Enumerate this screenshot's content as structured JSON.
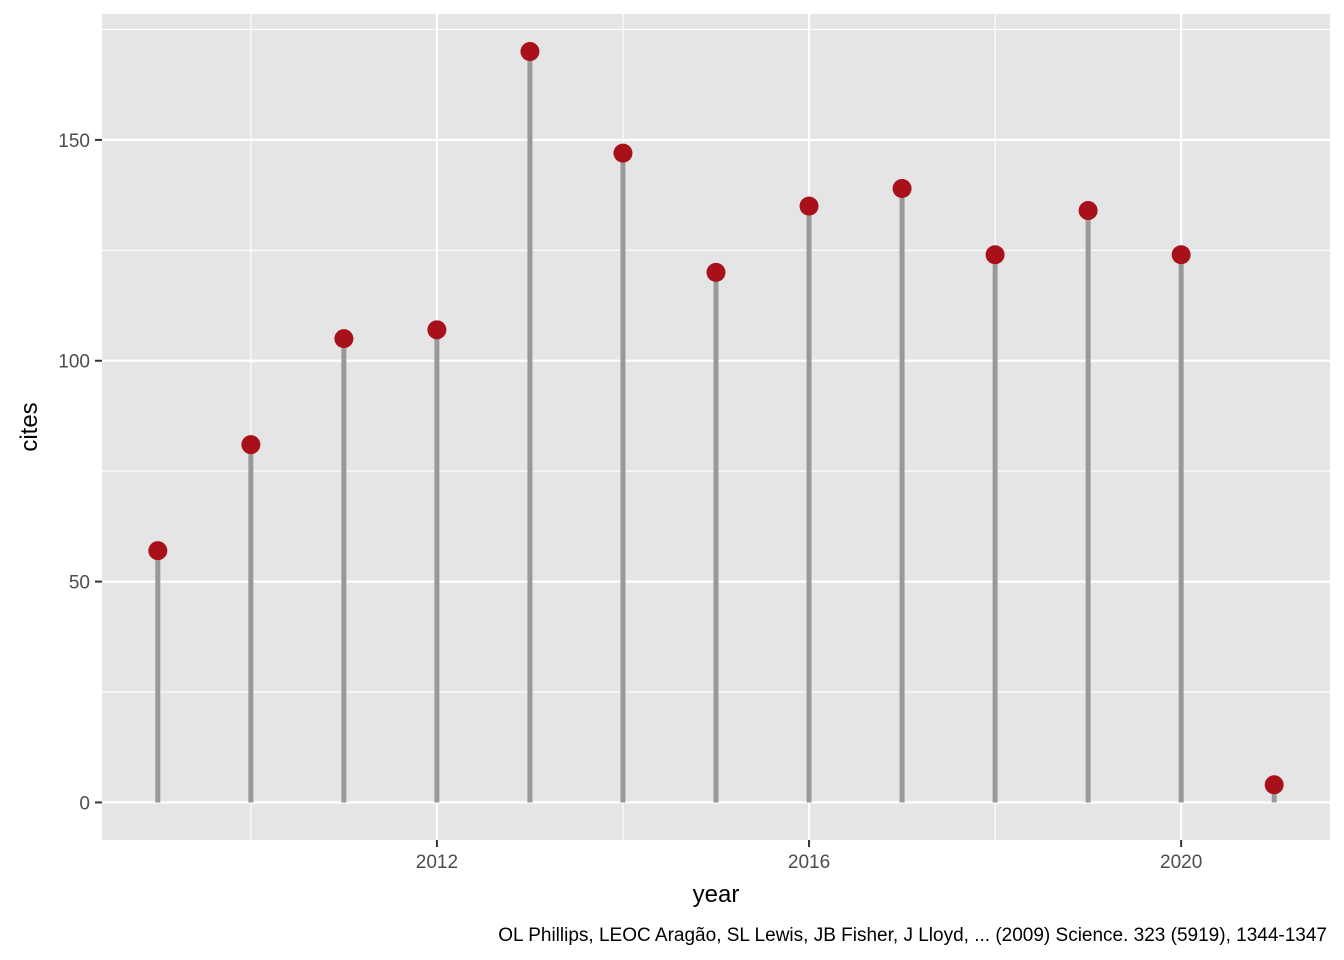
{
  "chart_data": {
    "type": "lollipop",
    "xlabel": "year",
    "ylabel": "cites",
    "caption": "OL Phillips, LEOC Aragão, SL Lewis, JB Fisher, J Lloyd, ... (2009) Science. 323 (5919), 1344-1347",
    "x": [
      2009,
      2010,
      2011,
      2012,
      2013,
      2014,
      2015,
      2016,
      2017,
      2018,
      2019,
      2020,
      2021
    ],
    "y": [
      57,
      81,
      105,
      107,
      170,
      147,
      120,
      135,
      139,
      124,
      134,
      124,
      4
    ],
    "xlim": [
      2008.4,
      2021.6
    ],
    "ylim": [
      -8.5,
      178.5
    ],
    "xticks": [
      2012,
      2016,
      2020
    ],
    "xtick_labels": [
      "2012",
      "2016",
      "2020"
    ],
    "yticks": [
      0,
      50,
      100,
      150
    ],
    "ytick_labels": [
      "0",
      "50",
      "100",
      "150"
    ],
    "grid": true,
    "colors": {
      "panel": "#e5e5e5",
      "grid": "#ffffff",
      "stem": "#999999",
      "point": "#a8101a",
      "tick_mark": "#333333"
    }
  }
}
